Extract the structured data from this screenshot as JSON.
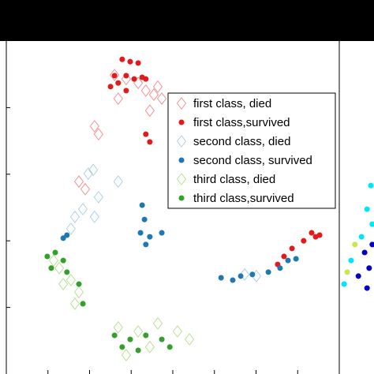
{
  "chart_data": [
    {
      "type": "scatter",
      "xlim": [
        0,
        100
      ],
      "ylim": [
        0,
        100
      ],
      "xticks": [
        12.5,
        25,
        37.5,
        50,
        62.5,
        75,
        87.5
      ],
      "yticks": [
        20,
        40,
        60,
        80
      ],
      "legend": "upper right",
      "series": [
        {
          "name": "first class, died",
          "color": "#f08a8a",
          "marker": "diamond",
          "filled": false,
          "x": [
            32.5,
            36.0,
            39.6,
            41.9,
            44.3,
            45.5,
            46.7,
            43.1,
            26.5,
            27.7,
            21.8,
            23.7,
            33.6
          ],
          "values": [
            89.8,
            88.6,
            87.4,
            85.1,
            83.9,
            86.3,
            82.7,
            79.1,
            74.4,
            72.0,
            57.8,
            55.5,
            82.7
          ]
        },
        {
          "name": "first class,survived",
          "color": "#e31a1c",
          "marker": "circle",
          "filled": true,
          "x": [
            34.8,
            37.2,
            39.6,
            32.5,
            36.0,
            40.8,
            33.6,
            38.4,
            41.9,
            31.3,
            36.0,
            43.1,
            41.9,
            91.7,
            92.9,
            94.1,
            89.3,
            85.8,
            83.4,
            81.5
          ],
          "values": [
            94.5,
            93.8,
            93.4,
            89.6,
            89.6,
            89.1,
            87.4,
            88.6,
            88.6,
            86.3,
            85.1,
            69.7,
            72.0,
            42.4,
            41.2,
            41.7,
            40.0,
            37.7,
            35.3,
            32.9
          ]
        },
        {
          "name": "second class, died",
          "color": "#a6cee3",
          "marker": "diamond",
          "filled": false,
          "x": [
            24.6,
            26.1,
            27.7,
            23.0,
            20.6,
            19.4,
            33.6,
            26.5,
            75.1,
            71.6
          ],
          "values": [
            60.2,
            61.3,
            53.1,
            49.5,
            47.2,
            43.6,
            57.8,
            47.2,
            29.4,
            29.9
          ]
        },
        {
          "name": "second class, survived",
          "color": "#1f78b4",
          "marker": "circle",
          "filled": true,
          "x": [
            40.8,
            41.5,
            40.3,
            43.1,
            41.9,
            46.7,
            18.2,
            17.1,
            64.5,
            68.0,
            70.4,
            73.9,
            78.7,
            82.2,
            84.6,
            87.0
          ],
          "values": [
            50.7,
            46.4,
            42.4,
            41.2,
            38.9,
            42.4,
            41.7,
            40.8,
            28.9,
            28.2,
            29.4,
            29.9,
            30.6,
            31.8,
            34.1,
            34.6
          ]
        },
        {
          "name": "third class, died",
          "color": "#b2df8a",
          "marker": "diamond",
          "filled": false,
          "x": [
            14.2,
            15.9,
            19.4,
            21.8,
            20.6,
            17.1,
            33.6,
            39.6,
            45.5,
            51.4,
            55.0,
            43.1,
            36.0
          ],
          "values": [
            34.1,
            31.8,
            28.2,
            24.6,
            21.1,
            27.0,
            14.0,
            12.8,
            15.2,
            12.8,
            10.4,
            8.1,
            5.7
          ]
        },
        {
          "name": "third class,survived",
          "color": "#33a02c",
          "marker": "circle",
          "filled": true,
          "x": [
            12.3,
            14.7,
            17.1,
            13.5,
            18.2,
            21.8,
            23.0,
            32.5,
            37.2,
            41.9,
            46.7,
            49.1,
            39.6,
            34.8
          ],
          "values": [
            35.3,
            36.5,
            34.1,
            31.8,
            30.6,
            27.0,
            21.1,
            11.6,
            10.4,
            11.6,
            10.4,
            8.1,
            7.1,
            8.1
          ]
        }
      ]
    },
    {
      "type": "scatter",
      "xlim": [
        0,
        10
      ],
      "ylim": [
        0,
        100
      ],
      "series": [
        {
          "color": "#00e5ff",
          "marker": "circle",
          "filled": true,
          "x": [
            9.1,
            8.0,
            6.4,
            3.4,
            1.4,
            9.5
          ],
          "values": [
            56.6,
            49.5,
            41.2,
            34.1,
            27.0,
            45.0
          ]
        },
        {
          "color": "#0000c8",
          "marker": "circle",
          "filled": true,
          "x": [
            7.3,
            8.6,
            5.5,
            8.0,
            9.5
          ],
          "values": [
            36.5,
            31.8,
            29.4,
            25.8,
            38.9
          ]
        },
        {
          "color": "#c8e650",
          "marker": "circle",
          "filled": true,
          "x": [
            4.5,
            2.3
          ],
          "values": [
            38.9,
            30.6
          ]
        }
      ]
    }
  ]
}
